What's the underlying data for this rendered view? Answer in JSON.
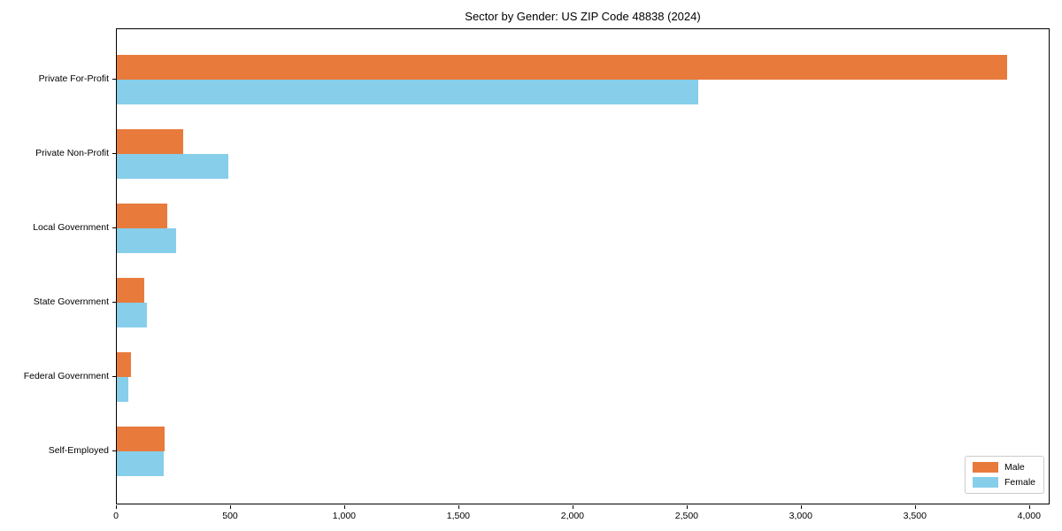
{
  "chart_data": {
    "type": "bar",
    "orientation": "horizontal",
    "title": "Sector by Gender: US ZIP Code 48838 (2024)",
    "categories": [
      "Private For-Profit",
      "Private Non-Profit",
      "Local Government",
      "State Government",
      "Federal Government",
      "Self-Employed"
    ],
    "series": [
      {
        "name": "Male",
        "color": "#e87b3c",
        "values": [
          3900,
          290,
          220,
          120,
          60,
          210
        ]
      },
      {
        "name": "Female",
        "color": "#87ceeb",
        "values": [
          2545,
          490,
          260,
          130,
          50,
          205
        ]
      }
    ],
    "xlabel": "",
    "ylabel": "",
    "xlim": [
      0,
      4090
    ],
    "xticks": [
      0,
      500,
      1000,
      1500,
      2000,
      2500,
      3000,
      3500,
      4000
    ],
    "xtick_labels": [
      "0",
      "500",
      "1,000",
      "1,500",
      "2,000",
      "2,500",
      "3,000",
      "3,500",
      "4,000"
    ],
    "legend_position": "lower right",
    "grid": false,
    "colors": {
      "male": "#e87b3c",
      "female": "#87ceeb",
      "text": "#000000",
      "spine": "#000000",
      "background": "#ffffff"
    }
  }
}
